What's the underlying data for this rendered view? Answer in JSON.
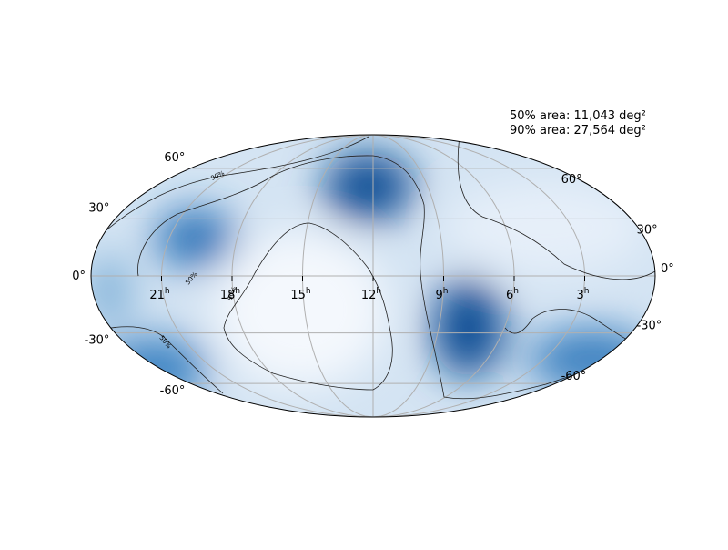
{
  "map": {
    "stats": [
      "50% area: 11,043 deg²",
      "90% area: 27,564 deg²"
    ],
    "lat_ticks": [
      {
        "value": 60,
        "label": "60°"
      },
      {
        "value": 30,
        "label": "30°"
      },
      {
        "value": 0,
        "label": "0°"
      },
      {
        "value": -30,
        "label": "-30°"
      },
      {
        "value": -60,
        "label": "-60°"
      }
    ],
    "ra_ticks": [
      {
        "value": 21,
        "label": "21",
        "unit": "h"
      },
      {
        "value": 18,
        "label": "18",
        "unit": "h"
      },
      {
        "value": 15,
        "label": "15",
        "unit": "h"
      },
      {
        "value": 12,
        "label": "12",
        "unit": "h"
      },
      {
        "value": 9,
        "label": "9",
        "unit": "h"
      },
      {
        "value": 6,
        "label": "6",
        "unit": "h"
      },
      {
        "value": 3,
        "label": "3",
        "unit": "h"
      }
    ],
    "contour_labels": [
      "90%",
      "50%",
      "90%",
      "50%"
    ]
  }
}
